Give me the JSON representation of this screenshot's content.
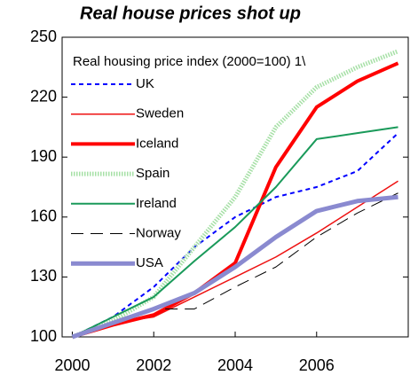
{
  "chart_data": {
    "type": "line",
    "title": "Real house prices shot up",
    "annotation": "Real housing price index (2000=100) 1\\",
    "x": [
      2000,
      2001,
      2002,
      2003,
      2004,
      2005,
      2006,
      2007,
      2008
    ],
    "xlim": [
      1999.75,
      2008.25
    ],
    "xticks": [
      2000,
      2002,
      2004,
      2006
    ],
    "ylim": [
      100,
      250
    ],
    "yticks": [
      100,
      130,
      160,
      190,
      220,
      250
    ],
    "grid": false,
    "legend": "top-left",
    "series": [
      {
        "name": "UK",
        "color": "#0000ff",
        "values": [
          100,
          110,
          125,
          145,
          160,
          170,
          175,
          183,
          202
        ]
      },
      {
        "name": "Sweden",
        "color": "#ee1111",
        "values": [
          100,
          107,
          110,
          120,
          130,
          140,
          152,
          165,
          178
        ]
      },
      {
        "name": "Iceland",
        "color": "#ff0000",
        "values": [
          100,
          106,
          111,
          122,
          137,
          185,
          215,
          228,
          237
        ]
      },
      {
        "name": "Spain",
        "color": "#a6e0a6",
        "values": [
          100,
          108,
          120,
          145,
          170,
          205,
          225,
          235,
          243
        ]
      },
      {
        "name": "Ireland",
        "color": "#1a9a5a",
        "values": [
          100,
          110,
          120,
          138,
          155,
          175,
          199,
          202,
          205
        ]
      },
      {
        "name": "Norway",
        "color": "#000000",
        "values": [
          100,
          107,
          114,
          114,
          125,
          135,
          150,
          162,
          172
        ]
      },
      {
        "name": "USA",
        "color": "#8a8ad0",
        "values": [
          100,
          107,
          114,
          122,
          135,
          150,
          163,
          168,
          170
        ]
      }
    ]
  }
}
